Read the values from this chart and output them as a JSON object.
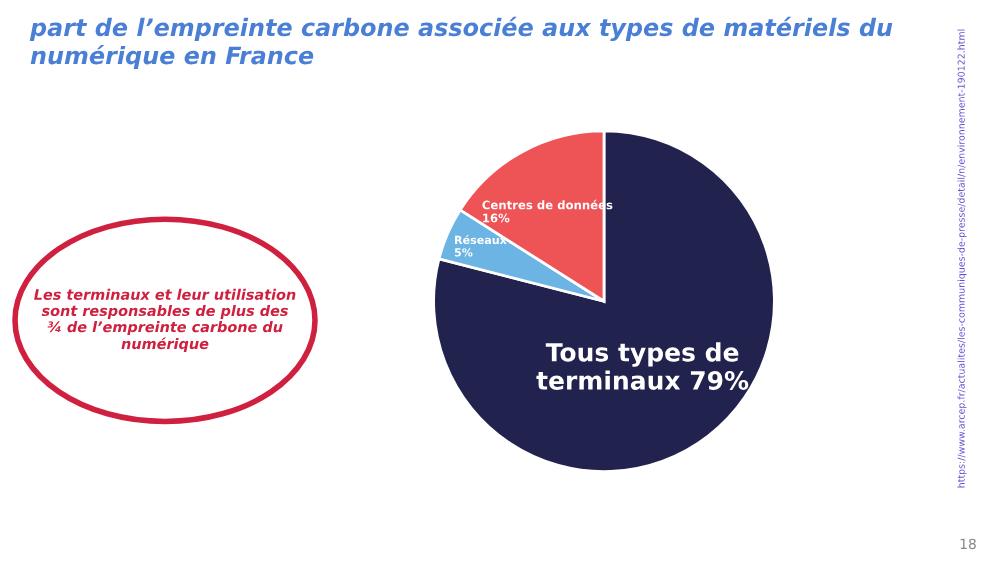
{
  "chart_data": {
    "type": "pie",
    "title": "part de l’empreinte carbone associée aux types de matériels du numérique en France",
    "categories": [
      "Tous types de terminaux",
      "Réseaux",
      "Centres de données"
    ],
    "values": [
      79,
      5,
      16
    ],
    "colors": [
      "#22224e",
      "#6cb4e4",
      "#ee5356"
    ],
    "value_labels": [
      "79%",
      "5%",
      "16%"
    ],
    "annotations": [
      "Les terminaux et leur utilisation sont responsables de plus des ¾ de l’empreinte carbone du numérique",
      "https://www.arcep.fr/actualites/les-communiques-de-presse/detail/n/environnement-190122.html",
      "18"
    ]
  }
}
